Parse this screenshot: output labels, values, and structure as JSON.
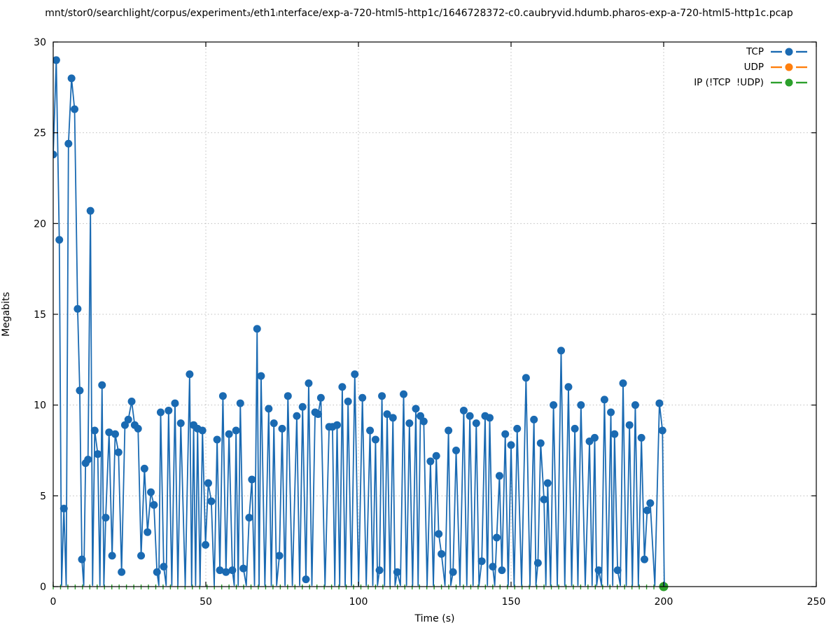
{
  "window": {
    "title": "mnt/stor0/searchlight/corpus/experiment₃/eth1ᵢnterface/exp-a-720-html5-http1c/1646728372-c0.caubryvid.hdumb.pharos-exp-a-720-html5-http1c.pcap"
  },
  "chart_data": {
    "type": "line",
    "title": "mnt/stor0/searchlight/corpus/experiment₃/eth1ᵢnterface/exp-a-720-html5-http1c/1646728372-c0.caubryvid.hdumb.pharos-exp-a-720-html5-http1c.pcap",
    "xlabel": "Time (s)",
    "ylabel": "Megabits",
    "xlim": [
      0,
      250
    ],
    "ylim": [
      0,
      30
    ],
    "xticks": [
      0,
      50,
      100,
      150,
      200,
      250
    ],
    "yticks": [
      0,
      5,
      10,
      15,
      20,
      25,
      30
    ],
    "grid": true,
    "grid_color": "#bdbdbd",
    "axis_color": "#000000",
    "legend_position": "top-right-inside",
    "series": [
      {
        "name": "TCP",
        "color": "#1a6ab2",
        "style": "linespoints",
        "marker": "filled-circle",
        "marker_radius": 5.5,
        "marker_min_visible": 0.35,
        "valley_value": 0.07,
        "valley_gap": 1.15,
        "points": [
          [
            0,
            23.8
          ],
          [
            1,
            29.0
          ],
          [
            2,
            19.1
          ],
          [
            3.5,
            4.3
          ],
          [
            5,
            24.4
          ],
          [
            6,
            28.0
          ],
          [
            7,
            26.3
          ],
          [
            8,
            15.3
          ],
          [
            8.7,
            10.8
          ],
          [
            9.4,
            1.5
          ],
          [
            10.6,
            6.8
          ],
          [
            11.4,
            7.0
          ],
          [
            12.2,
            20.7
          ],
          [
            13.6,
            8.6
          ],
          [
            14.6,
            7.3
          ],
          [
            16,
            11.1
          ],
          [
            17.2,
            3.8
          ],
          [
            18.3,
            8.5
          ],
          [
            19.3,
            1.7
          ],
          [
            20.3,
            8.4
          ],
          [
            21.4,
            7.4
          ],
          [
            22.4,
            0.8
          ],
          [
            23.5,
            8.9
          ],
          [
            24.6,
            9.2
          ],
          [
            25.7,
            10.2
          ],
          [
            26.7,
            8.9
          ],
          [
            27.8,
            8.7
          ],
          [
            28.8,
            1.7
          ],
          [
            29.9,
            6.5
          ],
          [
            30.9,
            3.0
          ],
          [
            32,
            5.2
          ],
          [
            33,
            4.5
          ],
          [
            34,
            0.8
          ],
          [
            35.2,
            9.6
          ],
          [
            36.2,
            1.1
          ],
          [
            37.8,
            9.7
          ],
          [
            39.9,
            10.1
          ],
          [
            41.8,
            9.0
          ],
          [
            44.7,
            11.7
          ],
          [
            46,
            8.9
          ],
          [
            47.3,
            8.7
          ],
          [
            48.9,
            8.6
          ],
          [
            49.9,
            2.3
          ],
          [
            50.8,
            5.7
          ],
          [
            51.8,
            4.7
          ],
          [
            53.7,
            8.1
          ],
          [
            54.6,
            0.9
          ],
          [
            55.6,
            10.5
          ],
          [
            56.6,
            0.8
          ],
          [
            57.6,
            8.4
          ],
          [
            58.7,
            0.9
          ],
          [
            59.9,
            8.6
          ],
          [
            61.3,
            10.1
          ],
          [
            62.3,
            1.0
          ],
          [
            64.2,
            3.8
          ],
          [
            65.1,
            5.9
          ],
          [
            66.8,
            14.2
          ],
          [
            68.1,
            11.6
          ],
          [
            70.6,
            9.8
          ],
          [
            72.3,
            9.0
          ],
          [
            74.1,
            1.7
          ],
          [
            75,
            8.7
          ],
          [
            76.9,
            10.5
          ],
          [
            79.8,
            9.4
          ],
          [
            81.7,
            9.9
          ],
          [
            82.8,
            0.4
          ],
          [
            83.7,
            11.2
          ],
          [
            85.8,
            9.6
          ],
          [
            86.8,
            9.5
          ],
          [
            87.7,
            10.4
          ],
          [
            90.4,
            8.8
          ],
          [
            91.5,
            8.8
          ],
          [
            93,
            8.9
          ],
          [
            94.7,
            11.0
          ],
          [
            96.6,
            10.2
          ],
          [
            98.8,
            11.7
          ],
          [
            101.3,
            10.4
          ],
          [
            103.8,
            8.6
          ],
          [
            105.6,
            8.1
          ],
          [
            106.9,
            0.9
          ],
          [
            107.7,
            10.5
          ],
          [
            109.4,
            9.5
          ],
          [
            111.3,
            9.3
          ],
          [
            112.7,
            0.8
          ],
          [
            114.8,
            10.6
          ],
          [
            116.7,
            9.0
          ],
          [
            118.8,
            9.8
          ],
          [
            120.3,
            9.4
          ],
          [
            121.4,
            9.1
          ],
          [
            123.6,
            6.9
          ],
          [
            125.5,
            7.2
          ],
          [
            126.3,
            2.9
          ],
          [
            127.2,
            1.8
          ],
          [
            129.5,
            8.6
          ],
          [
            131,
            0.8
          ],
          [
            132,
            7.5
          ],
          [
            134.5,
            9.7
          ],
          [
            136.5,
            9.4
          ],
          [
            138.6,
            9.0
          ],
          [
            140.4,
            1.4
          ],
          [
            141.5,
            9.4
          ],
          [
            143,
            9.3
          ],
          [
            144,
            1.1
          ],
          [
            145.3,
            2.7
          ],
          [
            146.2,
            6.1
          ],
          [
            147,
            0.9
          ],
          [
            148.1,
            8.4
          ],
          [
            150,
            7.8
          ],
          [
            152,
            8.7
          ],
          [
            154.9,
            11.5
          ],
          [
            157.5,
            9.2
          ],
          [
            158.8,
            1.3
          ],
          [
            159.7,
            7.9
          ],
          [
            160.8,
            4.8
          ],
          [
            162,
            5.7
          ],
          [
            163.9,
            10.0
          ],
          [
            166.4,
            13.0
          ],
          [
            168.8,
            11.0
          ],
          [
            170.9,
            8.7
          ],
          [
            172.9,
            10.0
          ],
          [
            175.7,
            8.0
          ],
          [
            177.4,
            8.2
          ],
          [
            178.7,
            0.9
          ],
          [
            180.6,
            10.3
          ],
          [
            182.7,
            9.6
          ],
          [
            183.9,
            8.4
          ],
          [
            184.9,
            0.9
          ],
          [
            186.7,
            11.2
          ],
          [
            188.8,
            8.9
          ],
          [
            190.7,
            10.0
          ],
          [
            192.7,
            8.2
          ],
          [
            193.7,
            1.5
          ],
          [
            194.6,
            4.2
          ],
          [
            195.6,
            4.6
          ],
          [
            198.6,
            10.1
          ],
          [
            199.6,
            8.6
          ],
          [
            200.2,
            0.05
          ]
        ]
      },
      {
        "name": "UDP",
        "color": "#ff7f0e",
        "style": "linespoints",
        "marker": "filled-circle",
        "points": []
      },
      {
        "name": "IP (!TCP  !UDP)",
        "color": "#2ca02c",
        "style": "baseline-dashes",
        "baseline_value": 0,
        "x_range": [
          0,
          200
        ],
        "dash_spacing": 2.4,
        "endpoint": [
          200,
          0
        ],
        "endpoint_radius": 6.5
      }
    ]
  }
}
